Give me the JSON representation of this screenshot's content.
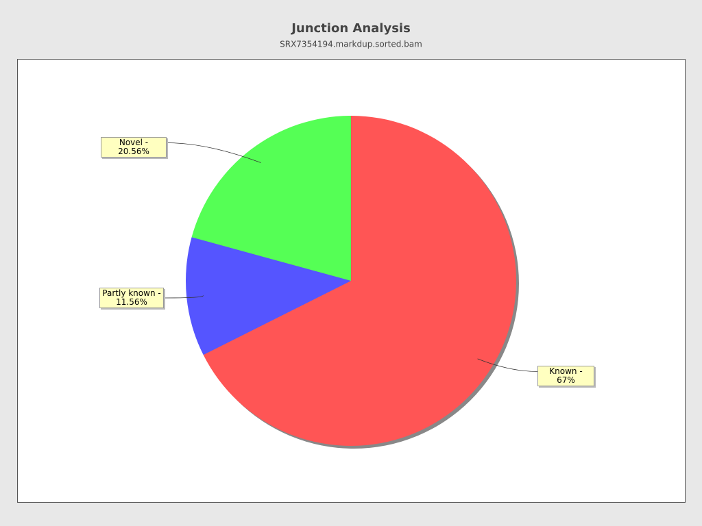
{
  "chart_data": {
    "type": "pie",
    "title": "Junction Analysis",
    "subtitle": "SRX7354194.markdup.sorted.bam",
    "values": [
      67,
      11.56,
      20.56
    ],
    "value_labels": [
      "Known - 67%",
      "Partly known - 11.56%",
      "Novel - 20.56%"
    ],
    "colors": [
      "#ff5555",
      "#5555ff",
      "#55ff55"
    ]
  }
}
